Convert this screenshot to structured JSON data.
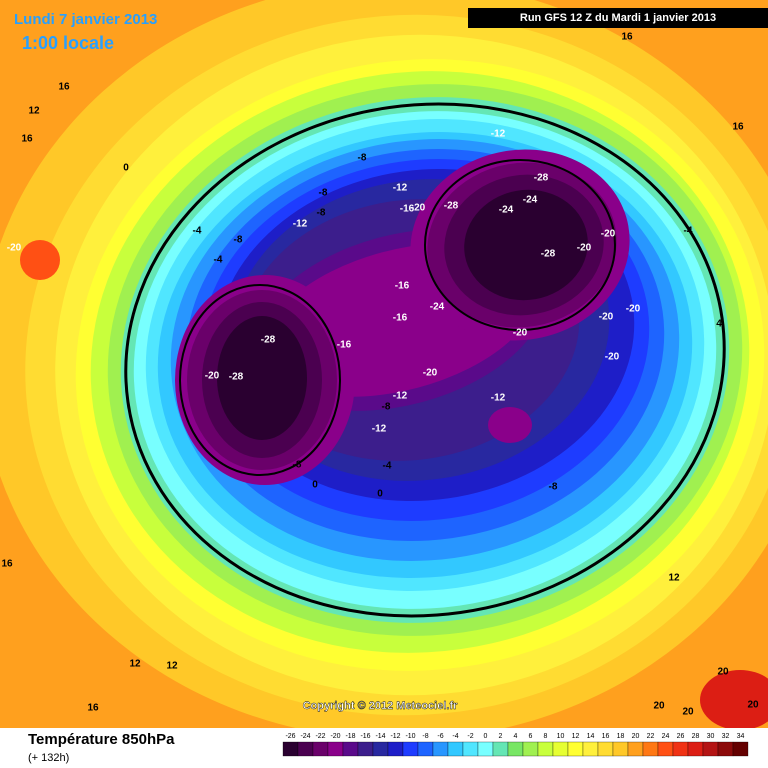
{
  "header": {
    "date": "Lundi 7 janvier 2013",
    "time": "1:00 locale",
    "run": "Run GFS 12 Z du Mardi 1 janvier 2013"
  },
  "map": {
    "contour_labels": [
      -28,
      -28,
      -28,
      -28,
      -28,
      -20,
      -20,
      -16,
      -16,
      -16,
      -20,
      -20,
      -20,
      -20,
      -20,
      -20,
      -12,
      -12,
      -12,
      -8,
      -12,
      -12,
      -8,
      -12,
      -8,
      -8,
      -8,
      -4,
      -4,
      0,
      16,
      16,
      12,
      -20,
      16,
      16,
      12,
      12,
      0,
      -4,
      -8,
      -4,
      4,
      16,
      16,
      12,
      20,
      20,
      20,
      20,
      0,
      -8,
      -20,
      -16,
      -24,
      -24,
      -24
    ]
  },
  "copyright": "Copyright © 2012 Meteociel.fr",
  "footer": {
    "title": "Température 850hPa",
    "lead": "(+ 132h)"
  },
  "legend": {
    "ticks": [
      -26,
      -24,
      -22,
      -20,
      -18,
      -16,
      -14,
      -12,
      -10,
      -8,
      -6,
      -4,
      -2,
      0,
      2,
      4,
      6,
      8,
      10,
      12,
      14,
      16,
      18,
      20,
      22,
      24,
      26,
      28,
      30,
      32,
      34
    ],
    "colors": [
      "#2a0030",
      "#4b0050",
      "#6a006a",
      "#8a008a",
      "#5a0a8a",
      "#3c1e8c",
      "#2828a0",
      "#1e1ec8",
      "#1e3cff",
      "#1e64ff",
      "#2896ff",
      "#32c8ff",
      "#50e6ff",
      "#78ffff",
      "#64e6b4",
      "#78e664",
      "#a0f050",
      "#c8ff3c",
      "#e6ff32",
      "#ffff32",
      "#fff03c",
      "#ffdc32",
      "#ffc828",
      "#ffa01e",
      "#ff7814",
      "#ff5014",
      "#f03214",
      "#dc1e14",
      "#b41414",
      "#8c0a0a",
      "#640000"
    ]
  }
}
